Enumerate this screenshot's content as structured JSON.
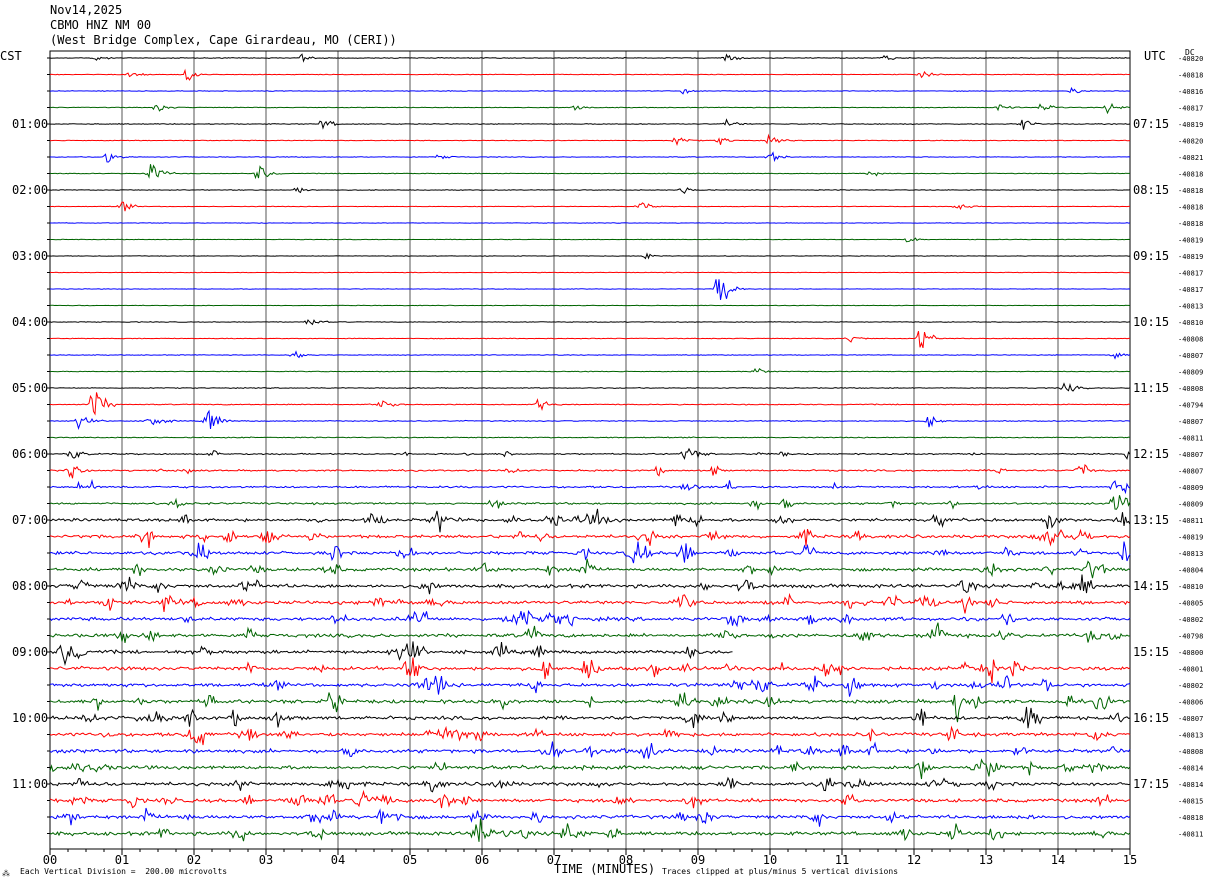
{
  "header": {
    "date": "Nov14,2025",
    "station": "CBMO HNZ NM 00",
    "location": "(West Bridge Complex, Cape Girardeau, MO (CERI))"
  },
  "axis_labels": {
    "left_tz": "CST",
    "right_tz": "UTC",
    "dc_label": "DC"
  },
  "footer": {
    "xlabel": "TIME (MINUTES)",
    "scale_note": "Each Vertical Division =  200.00 microvolts",
    "clip_note": "Traces clipped at plus/minus 5 vertical divisions",
    "corner_mark": "⁂"
  },
  "chart_data": {
    "type": "line",
    "title": "CBMO HNZ NM 00",
    "xlabel": "TIME (MINUTES)",
    "xlim": [
      0,
      15
    ],
    "x_ticks": [
      "00",
      "01",
      "02",
      "03",
      "04",
      "05",
      "06",
      "07",
      "08",
      "09",
      "10",
      "11",
      "12",
      "13",
      "14",
      "15"
    ],
    "trace_colors": [
      "#000000",
      "#ff0000",
      "#0000ff",
      "#006400"
    ],
    "trace_count": 48,
    "left_time_labels": [
      {
        "trace": 4,
        "label": "01:00"
      },
      {
        "trace": 8,
        "label": "02:00"
      },
      {
        "trace": 12,
        "label": "03:00"
      },
      {
        "trace": 16,
        "label": "04:00"
      },
      {
        "trace": 20,
        "label": "05:00"
      },
      {
        "trace": 24,
        "label": "06:00"
      },
      {
        "trace": 28,
        "label": "07:00"
      },
      {
        "trace": 32,
        "label": "08:00"
      },
      {
        "trace": 36,
        "label": "09:00"
      },
      {
        "trace": 40,
        "label": "10:00"
      },
      {
        "trace": 44,
        "label": "11:00"
      }
    ],
    "right_time_labels": [
      {
        "trace": 4,
        "label": "07:15"
      },
      {
        "trace": 8,
        "label": "08:15"
      },
      {
        "trace": 12,
        "label": "09:15"
      },
      {
        "trace": 16,
        "label": "10:15"
      },
      {
        "trace": 20,
        "label": "11:15"
      },
      {
        "trace": 24,
        "label": "12:15"
      },
      {
        "trace": 28,
        "label": "13:15"
      },
      {
        "trace": 32,
        "label": "14:15"
      },
      {
        "trace": 36,
        "label": "15:15"
      },
      {
        "trace": 40,
        "label": "16:15"
      },
      {
        "trace": 44,
        "label": "17:15"
      }
    ],
    "dc_offsets": [
      "-40820",
      "-40818",
      "-40816",
      "-40817",
      "-40819",
      "-40820",
      "-40821",
      "-40818",
      "-40818",
      "-40818",
      "-40818",
      "-40819",
      "-40819",
      "-40817",
      "-40817",
      "-40813",
      "-40810",
      "-40808",
      "-40807",
      "-40809",
      "-40808",
      "-40794",
      "-40807",
      "-40811",
      "-40807",
      "-40807",
      "-40809",
      "-40809",
      "-40811",
      "-40819",
      "-40813",
      "-40804",
      "-40810",
      "-40805",
      "-40802",
      "-40798",
      "-40800",
      "-40801",
      "-40802",
      "-40806",
      "-40807",
      "-40813",
      "-40808",
      "-40814",
      "-40814",
      "-40815",
      "-40818",
      "-40811"
    ],
    "noise_levels": [
      0.25,
      0.2,
      0.2,
      0.2,
      0.25,
      0.2,
      0.2,
      0.2,
      0.2,
      0.15,
      0.15,
      0.15,
      0.15,
      0.15,
      0.15,
      0.15,
      0.2,
      0.2,
      0.2,
      0.2,
      0.25,
      0.3,
      0.3,
      0.3,
      0.4,
      0.5,
      0.6,
      0.6,
      0.9,
      1.0,
      1.0,
      1.0,
      1.1,
      1.1,
      1.1,
      1.1,
      1.1,
      1.1,
      1.1,
      1.1,
      1.1,
      1.1,
      1.1,
      1.1,
      1.1,
      1.1,
      1.1,
      1.1
    ],
    "events": [
      {
        "trace": 0,
        "minute": 0.6,
        "amp": 3
      },
      {
        "trace": 0,
        "minute": 3.5,
        "amp": 3
      },
      {
        "trace": 0,
        "minute": 9.4,
        "amp": 5
      },
      {
        "trace": 0,
        "minute": 11.6,
        "amp": 3
      },
      {
        "trace": 1,
        "minute": 1.1,
        "amp": 4
      },
      {
        "trace": 1,
        "minute": 1.9,
        "amp": 6
      },
      {
        "trace": 1,
        "minute": 12.1,
        "amp": 3
      },
      {
        "trace": 2,
        "minute": 8.8,
        "amp": 3
      },
      {
        "trace": 2,
        "minute": 14.2,
        "amp": 3
      },
      {
        "trace": 3,
        "minute": 1.5,
        "amp": 4
      },
      {
        "trace": 3,
        "minute": 7.3,
        "amp": 3
      },
      {
        "trace": 3,
        "minute": 13.2,
        "amp": 3
      },
      {
        "trace": 3,
        "minute": 13.8,
        "amp": 6
      },
      {
        "trace": 3,
        "minute": 14.7,
        "amp": 4
      },
      {
        "trace": 4,
        "minute": 3.8,
        "amp": 5
      },
      {
        "trace": 4,
        "minute": 9.4,
        "amp": 4
      },
      {
        "trace": 4,
        "minute": 13.5,
        "amp": 6
      },
      {
        "trace": 5,
        "minute": 8.7,
        "amp": 4
      },
      {
        "trace": 5,
        "minute": 9.3,
        "amp": 4
      },
      {
        "trace": 5,
        "minute": 10.0,
        "amp": 4
      },
      {
        "trace": 6,
        "minute": 0.8,
        "amp": 6
      },
      {
        "trace": 6,
        "minute": 5.4,
        "amp": 3
      },
      {
        "trace": 6,
        "minute": 10.0,
        "amp": 8
      },
      {
        "trace": 7,
        "minute": 1.4,
        "amp": 14
      },
      {
        "trace": 7,
        "minute": 2.9,
        "amp": 9
      },
      {
        "trace": 7,
        "minute": 11.4,
        "amp": 3
      },
      {
        "trace": 8,
        "minute": 3.4,
        "amp": 4
      },
      {
        "trace": 8,
        "minute": 8.8,
        "amp": 4
      },
      {
        "trace": 9,
        "minute": 1.0,
        "amp": 5
      },
      {
        "trace": 9,
        "minute": 8.2,
        "amp": 5
      },
      {
        "trace": 9,
        "minute": 12.6,
        "amp": 5
      },
      {
        "trace": 11,
        "minute": 11.9,
        "amp": 3
      },
      {
        "trace": 12,
        "minute": 8.3,
        "amp": 4
      },
      {
        "trace": 14,
        "minute": 9.3,
        "amp": 22
      },
      {
        "trace": 16,
        "minute": 3.6,
        "amp": 4
      },
      {
        "trace": 17,
        "minute": 11.1,
        "amp": 4
      },
      {
        "trace": 17,
        "minute": 12.1,
        "amp": 12
      },
      {
        "trace": 18,
        "minute": 3.4,
        "amp": 5
      },
      {
        "trace": 18,
        "minute": 14.8,
        "amp": 4
      },
      {
        "trace": 19,
        "minute": 9.8,
        "amp": 4
      },
      {
        "trace": 20,
        "minute": 14.1,
        "amp": 6
      },
      {
        "trace": 21,
        "minute": 0.6,
        "amp": 20
      },
      {
        "trace": 21,
        "minute": 4.6,
        "amp": 5
      },
      {
        "trace": 21,
        "minute": 6.8,
        "amp": 5
      },
      {
        "trace": 22,
        "minute": 0.4,
        "amp": 7
      },
      {
        "trace": 22,
        "minute": 1.4,
        "amp": 8
      },
      {
        "trace": 22,
        "minute": 2.2,
        "amp": 14
      },
      {
        "trace": 22,
        "minute": 12.2,
        "amp": 5
      },
      {
        "trace": 24,
        "minute": 0.3,
        "amp": 6
      },
      {
        "trace": 24,
        "minute": 8.9,
        "amp": 5
      },
      {
        "trace": 24,
        "minute": 15.0,
        "amp": 8
      },
      {
        "trace": 25,
        "minute": 0.3,
        "amp": 6
      },
      {
        "trace": 25,
        "minute": 14.3,
        "amp": 5
      },
      {
        "trace": 26,
        "minute": 14.8,
        "amp": 12
      },
      {
        "trace": 27,
        "minute": 14.8,
        "amp": 14
      },
      {
        "trace": 28,
        "minute": 5.4,
        "amp": 8
      },
      {
        "trace": 28,
        "minute": 7.6,
        "amp": 8
      },
      {
        "trace": 29,
        "minute": 3.0,
        "amp": 14
      },
      {
        "trace": 30,
        "minute": 14.9,
        "amp": 10
      },
      {
        "trace": 33,
        "minute": 1.6,
        "amp": 10
      },
      {
        "trace": 37,
        "minute": 7.5,
        "amp": 7
      },
      {
        "trace": 37,
        "minute": 13.4,
        "amp": 6
      },
      {
        "trace": 38,
        "minute": 11.1,
        "amp": 10
      },
      {
        "trace": 39,
        "minute": 12.6,
        "amp": 18
      },
      {
        "trace": 42,
        "minute": 11.0,
        "amp": 8
      },
      {
        "trace": 45,
        "minute": 4.3,
        "amp": 10
      },
      {
        "trace": 45,
        "minute": 8.9,
        "amp": 8
      },
      {
        "trace": 46,
        "minute": 4.6,
        "amp": 10
      }
    ],
    "gaps": [
      {
        "trace": 36,
        "from_minute": 9.5,
        "to_minute": 15
      }
    ]
  }
}
